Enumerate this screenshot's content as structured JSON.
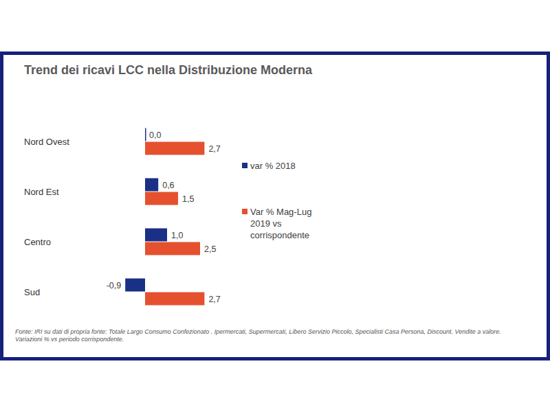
{
  "chart_data": {
    "type": "bar",
    "orientation": "horizontal",
    "title": "Trend dei ricavi LCC nella Distribuzione Moderna",
    "categories": [
      "Nord Ovest",
      "Nord Est",
      "Centro",
      "Sud"
    ],
    "series": [
      {
        "name": "var % 2018",
        "color": "#1a2f86",
        "values": [
          0.0,
          0.6,
          1.0,
          -0.9
        ],
        "value_labels": [
          "0,0",
          "0,6",
          "1,0",
          "-0,9"
        ]
      },
      {
        "name": "Var % Mag-Lug 2019 vs corrispondente",
        "color": "#e5512f",
        "values": [
          2.7,
          1.5,
          2.5,
          2.7
        ],
        "value_labels": [
          "2,7",
          "1,5",
          "2,5",
          "2,7"
        ]
      }
    ],
    "xlim": [
      -1,
      3
    ],
    "tick_labels": false,
    "grid": false,
    "data_labels": true,
    "legend": "right",
    "footnote": "Fonte: IRI su dati di propria fonte:  Totale Largo Consumo Confezionato . Ipermercati, Supermercati, Libero Servizio Piccolo, Specialisti Casa Persona, Discount. Vendite a valore. Variazioni % vs periodo corrispondente."
  }
}
